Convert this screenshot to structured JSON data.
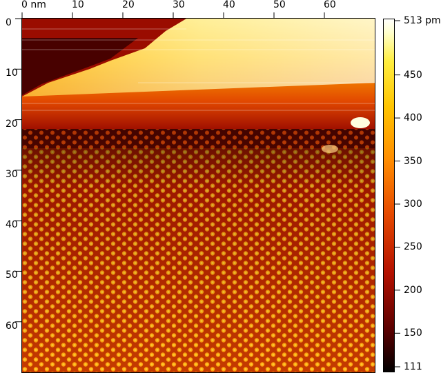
{
  "x_axis": {
    "ticks": [
      {
        "value": 0,
        "label": "0 nm"
      },
      {
        "value": 10,
        "label": "10"
      },
      {
        "value": 20,
        "label": "20"
      },
      {
        "value": 30,
        "label": "30"
      },
      {
        "value": 40,
        "label": "40"
      },
      {
        "value": 50,
        "label": "50"
      },
      {
        "value": 60,
        "label": "60"
      }
    ],
    "range": [
      0,
      70
    ]
  },
  "y_axis": {
    "ticks": [
      {
        "value": 0,
        "label": "0"
      },
      {
        "value": 10,
        "label": "10"
      },
      {
        "value": 20,
        "label": "20"
      },
      {
        "value": 30,
        "label": "30"
      },
      {
        "value": 40,
        "label": "40"
      },
      {
        "value": 50,
        "label": "50"
      },
      {
        "value": 60,
        "label": "60"
      }
    ],
    "range": [
      0,
      70
    ]
  },
  "colorbar": {
    "min": 111,
    "max": 513,
    "ticks": [
      {
        "value": 513,
        "label": "513 pm"
      },
      {
        "value": 450,
        "label": "450"
      },
      {
        "value": 400,
        "label": "400"
      },
      {
        "value": 350,
        "label": "350"
      },
      {
        "value": 300,
        "label": "300"
      },
      {
        "value": 250,
        "label": "250"
      },
      {
        "value": 200,
        "label": "200"
      },
      {
        "value": 150,
        "label": "150"
      },
      {
        "value": 111,
        "label": "111"
      }
    ],
    "colors": [
      "#000000",
      "#5a0000",
      "#b31000",
      "#e64a00",
      "#ff8c00",
      "#ffc400",
      "#ffee40",
      "#ffffcc",
      "#ffffff"
    ]
  }
}
